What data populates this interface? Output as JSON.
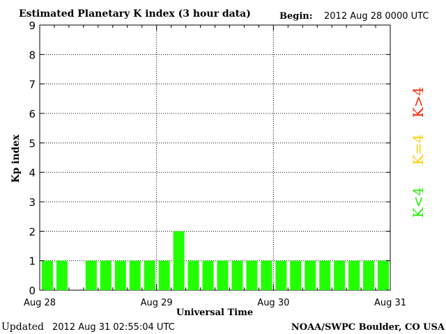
{
  "header": {
    "title": "Estimated Planetary K index (3 hour data)",
    "begin_label": "Begin:",
    "begin_value": "2012 Aug 28 0000 UTC"
  },
  "footer": {
    "updated_label": "Updated",
    "updated_value": "2012 Aug 31 02:55:04 UTC",
    "source": "NOAA/SWPC Boulder, CO USA"
  },
  "legend": {
    "high": {
      "label": "K>4",
      "color": "#ff2200"
    },
    "mid": {
      "label": "K=4",
      "color": "#ffcc00"
    },
    "low": {
      "label": "K<4",
      "color": "#22ee00"
    }
  },
  "chart_data": {
    "type": "bar",
    "xlabel": "Universal Time",
    "ylabel": "Kp index",
    "ylim": [
      0,
      9
    ],
    "yticks": [
      0,
      1,
      2,
      3,
      4,
      5,
      6,
      7,
      8,
      9
    ],
    "xticks": [
      "Aug 28",
      "Aug 29",
      "Aug 30",
      "Aug 31"
    ],
    "x_interval_hours": 3,
    "grid": true,
    "values": [
      1,
      1,
      null,
      1,
      1,
      1,
      1,
      1,
      1,
      2,
      1,
      1,
      1,
      1,
      1,
      1,
      1,
      1,
      1,
      1,
      1,
      1,
      1,
      1
    ],
    "bar_color": "#22ff00"
  }
}
